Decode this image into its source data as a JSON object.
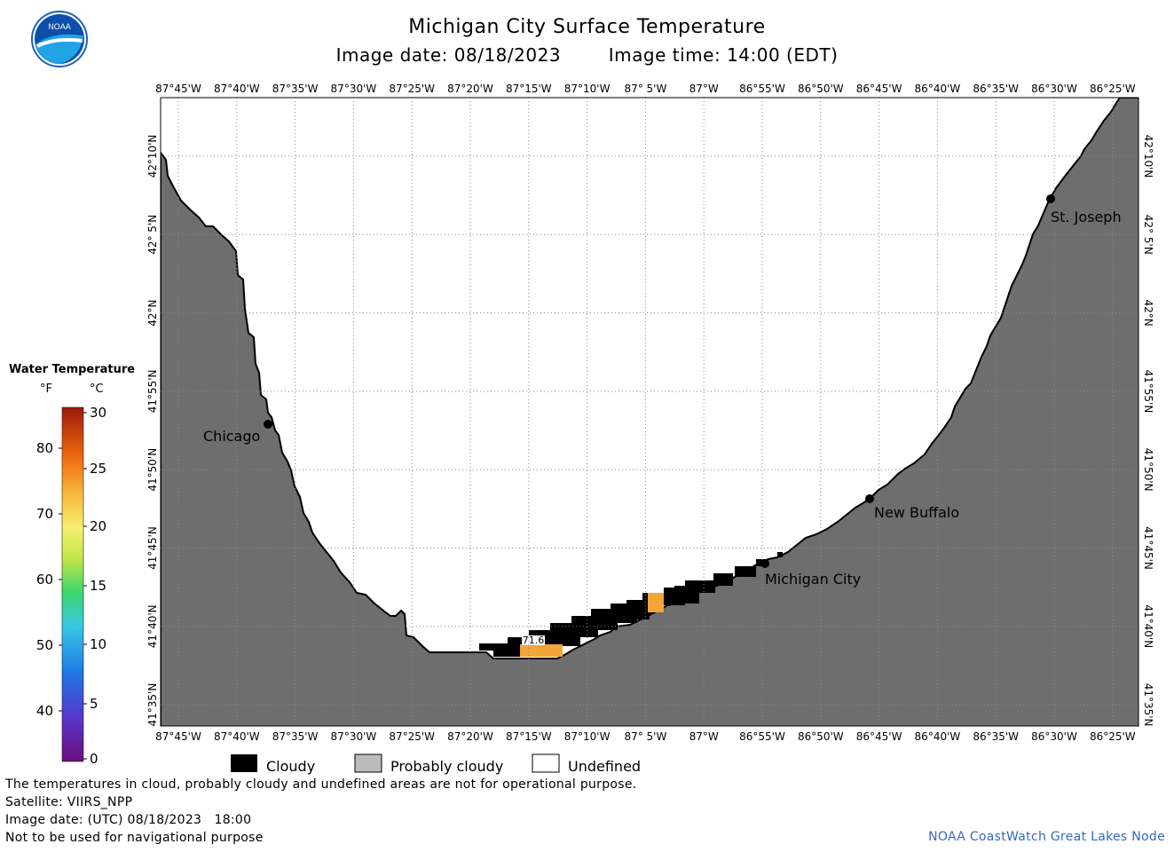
{
  "header": {
    "title": "Michigan City Surface Temperature",
    "image_date": "Image date: 08/18/2023",
    "image_time": "Image time: 14:00 (EDT)"
  },
  "logo": {
    "text": "NOAA"
  },
  "map": {
    "lon_labels": [
      "87°45'W",
      "87°40'W",
      "87°35'W",
      "87°30'W",
      "87°25'W",
      "87°20'W",
      "87°15'W",
      "87°10'W",
      "87° 5'W",
      "87°W",
      "86°55'W",
      "86°50'W",
      "86°45'W",
      "86°40'W",
      "86°35'W",
      "86°30'W",
      "86°25'W"
    ],
    "lat_labels": [
      "42°10'N",
      "42° 5'N",
      "42°N",
      "41°55'N",
      "41°50'N",
      "41°45'N",
      "41°40'N",
      "41°35'N"
    ],
    "cities": [
      {
        "name": "Chicago"
      },
      {
        "name": "St. Joseph"
      },
      {
        "name": "New Buffalo"
      },
      {
        "name": "Michigan City"
      }
    ],
    "temp_label": "71.6",
    "colors": {
      "land": "#6e6e6e",
      "cloud": "#000000",
      "water_warm": "#f3a53a",
      "grid": "#888888"
    }
  },
  "legend": {
    "title": "Water Temperature",
    "unit_f": "°F",
    "unit_c": "°C",
    "f_ticks": [
      "80",
      "70",
      "60",
      "50",
      "40"
    ],
    "c_ticks": [
      "30",
      "25",
      "20",
      "15",
      "10",
      "5",
      "0"
    ]
  },
  "key": {
    "cloudy": "Cloudy",
    "probably_cloudy": "Probably cloudy",
    "undefined": "Undefined"
  },
  "notes": {
    "disclaimer": "The temperatures in cloud, probably cloudy and undefined areas are not for operational purpose.",
    "satellite": "Satellite: VIIRS_NPP",
    "utc_date": "Image date: (UTC) 08/18/2023   18:00",
    "nav": "Not to be used for navigational purpose"
  },
  "credit": "NOAA CoastWatch Great Lakes Node"
}
